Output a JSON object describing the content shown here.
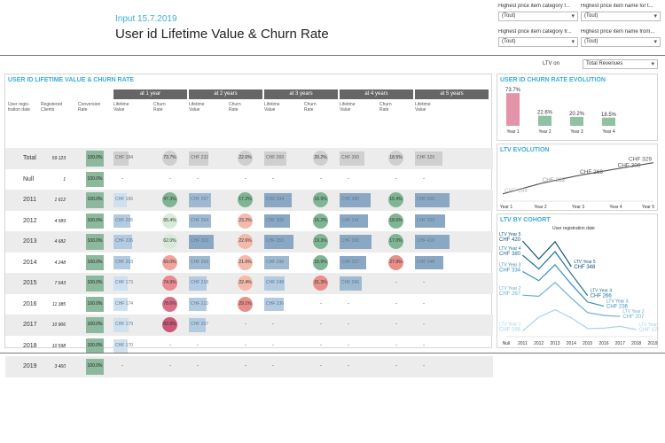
{
  "subtitle": "Input 15.7.2019",
  "title": "User id Lifetime Value & Churn Rate",
  "filters": [
    {
      "label": "Highest price item category f...",
      "value": "(Tout)"
    },
    {
      "label": "Highest price item name for t...",
      "value": "(Tout)"
    },
    {
      "label": "Highest price item category fr...",
      "value": "(Tout)"
    },
    {
      "label": "Highest price item name from...",
      "value": "(Tout)"
    }
  ],
  "ltv_on": {
    "label": "LTV on",
    "value": "Total Revenues"
  },
  "table": {
    "title": "USER ID LIFETIME VALUE & CHURN RATE",
    "col_headers": {
      "reg_date": "User regis-tration date",
      "reg_clients": "Registered Clients",
      "conv": "Conversion Rate",
      "ltv": "Lifetime Value",
      "churn": "Churn Rate"
    },
    "periods": [
      "at 1 year",
      "at 2 years",
      "at 3 years",
      "at 4 years",
      "at 5 years"
    ],
    "rows": [
      {
        "label": "Total",
        "clients": "59 123",
        "conv": "100.0%",
        "cells": [
          [
            "CHF 184",
            "73.7%"
          ],
          [
            "CHF 232",
            "22.6%"
          ],
          [
            "CHF 269",
            "20.2%"
          ],
          [
            "CHF 300",
            "18.5%"
          ],
          [
            "CHF 329",
            ""
          ]
        ]
      },
      {
        "label": "Null",
        "clients": "1",
        "conv": "100.0%",
        "cells": [
          [
            "-",
            "-"
          ],
          [
            "-",
            "-"
          ],
          [
            "-",
            "-"
          ],
          [
            "-",
            "-"
          ],
          [
            "-",
            ""
          ]
        ]
      },
      {
        "label": "2011",
        "clients": "1 612",
        "conv": "100.0%",
        "cells": [
          [
            "CHF 166",
            "47.3%"
          ],
          [
            "CHF 267",
            "17.2%"
          ],
          [
            "CHF 334",
            "16.9%"
          ],
          [
            "CHF 380",
            "15.4%"
          ],
          [
            "CHF 420",
            ""
          ]
        ]
      },
      {
        "label": "2012",
        "clients": "4 589",
        "conv": "100.0%",
        "cells": [
          [
            "CHF 205",
            "65.4%"
          ],
          [
            "CHF 264",
            "23.2%"
          ],
          [
            "CHF 308",
            "16.2%"
          ],
          [
            "CHF 341",
            "18.6%"
          ],
          [
            "CHF 369",
            ""
          ]
        ]
      },
      {
        "label": "2013",
        "clients": "4 682",
        "conv": "100.0%",
        "cells": [
          [
            "CHF 226",
            "62.0%"
          ],
          [
            "CHF 303",
            "22.6%"
          ],
          [
            "CHF 353",
            "19.3%"
          ],
          [
            "CHF 390",
            "17.0%"
          ],
          [
            "CHF 418",
            ""
          ]
        ]
      },
      {
        "label": "2014",
        "clients": "4 248",
        "conv": "100.0%",
        "cells": [
          [
            "CHF 203",
            "69.0%"
          ],
          [
            "CHF 259",
            "21.6%"
          ],
          [
            "CHF 298",
            "18.9%"
          ],
          [
            "CHF 327",
            "27.9%"
          ],
          [
            "CHF 348",
            ""
          ]
        ]
      },
      {
        "label": "2015",
        "clients": "7 643",
        "conv": "100.0%",
        "cells": [
          [
            "CHF 173",
            "74.9%"
          ],
          [
            "CHF 218",
            "22.4%"
          ],
          [
            "CHF 248",
            "31.3%"
          ],
          [
            "CHF 266",
            "-"
          ],
          [
            "-",
            ""
          ]
        ]
      },
      {
        "label": "2016",
        "clients": "11 385",
        "conv": "100.0%",
        "cells": [
          [
            "CHF 174",
            "78.6%"
          ],
          [
            "CHF 210",
            "29.1%"
          ],
          [
            "CHF 236",
            "-"
          ],
          [
            "-",
            "-"
          ],
          [
            "-",
            ""
          ]
        ]
      },
      {
        "label": "2017",
        "clients": "10 906",
        "conv": "100.0%",
        "cells": [
          [
            "CHF 179",
            "83.8%"
          ],
          [
            "CHF 207",
            "-"
          ],
          [
            "-",
            "-"
          ],
          [
            "-",
            "-"
          ],
          [
            "-",
            ""
          ]
        ]
      },
      {
        "label": "2018",
        "clients": "10 598",
        "conv": "100.0%",
        "cells": [
          [
            "CHF 170",
            "-"
          ],
          [
            "-",
            "-"
          ],
          [
            "-",
            "-"
          ],
          [
            "-",
            "-"
          ],
          [
            "-",
            ""
          ]
        ]
      },
      {
        "label": "2019",
        "clients": "3 460",
        "conv": "100.0%",
        "cells": [
          [
            "-",
            "-"
          ],
          [
            "-",
            "-"
          ],
          [
            "-",
            "-"
          ],
          [
            "-",
            "-"
          ],
          [
            "-",
            ""
          ]
        ]
      }
    ]
  },
  "churn_panel": {
    "title": "USER ID CHURN RATE EVOLUTION"
  },
  "ltv_evo_panel": {
    "title": "LTV EVOLUTION"
  },
  "cohort_panel": {
    "title": "LTV BY COHORT",
    "legend": "User registration date"
  },
  "chart_data": [
    {
      "type": "bar",
      "title": "USER ID CHURN RATE EVOLUTION",
      "categories": [
        "Year 1",
        "Year 2",
        "Year 3",
        "Year 4"
      ],
      "values": [
        73.7,
        22.6,
        20.2,
        18.5
      ],
      "labels": [
        "73.7%",
        "22.6%",
        "20.2%",
        "18.5%"
      ],
      "colors": [
        "#e394a8",
        "#8fc1a2",
        "#8fc1a2",
        "#8fc1a2"
      ]
    },
    {
      "type": "line",
      "title": "LTV EVOLUTION",
      "categories": [
        "Year 1",
        "Year 2",
        "Year 3",
        "Year 4",
        "Year 5"
      ],
      "values": [
        184,
        232,
        269,
        300,
        329
      ],
      "labels": [
        "CHF 184",
        "CHF 232",
        "CHF 269",
        "CHF 300",
        "CHF 329"
      ]
    },
    {
      "type": "line",
      "title": "LTV BY COHORT",
      "x": [
        "Null",
        "2011",
        "2012",
        "2013",
        "2014",
        "2015",
        "2016",
        "2017",
        "2018",
        "2019"
      ],
      "series": [
        {
          "name": "LTV Year 5",
          "values": [
            null,
            420,
            369,
            418,
            348,
            null,
            null,
            null,
            null,
            null
          ],
          "label": "LTV Year 5\nCHF 348",
          "label_left": "LTV Year 5\nCHF 420"
        },
        {
          "name": "LTV Year 4",
          "values": [
            null,
            380,
            341,
            390,
            327,
            266,
            null,
            null,
            null,
            null
          ],
          "label": "LTV Year 4\nCHF 266",
          "label_left": "LTV Year 4\nCHF 380"
        },
        {
          "name": "LTV Year 3",
          "values": [
            null,
            334,
            308,
            353,
            298,
            248,
            236,
            null,
            null,
            null
          ],
          "label": "LTV Year 3\nCHF 236",
          "label_left": "LTV Year 3\nCHF 334"
        },
        {
          "name": "LTV Year 2",
          "values": [
            null,
            267,
            264,
            303,
            259,
            218,
            210,
            207,
            null,
            null
          ],
          "label": "LTV Year 2\nCHF 207",
          "label_left": "LTV Year 2\nCHF 267"
        },
        {
          "name": "LTV Year 1",
          "values": [
            null,
            166,
            205,
            226,
            203,
            173,
            174,
            179,
            170,
            null
          ],
          "label": "LTV Year 1\nCHF 170",
          "label_left": "LTV Year 1\nCHF 166"
        }
      ],
      "colors": [
        "#0f4f7a",
        "#1e6e9c",
        "#3a8fbd",
        "#6cb0d4",
        "#a8d2e8"
      ]
    }
  ]
}
